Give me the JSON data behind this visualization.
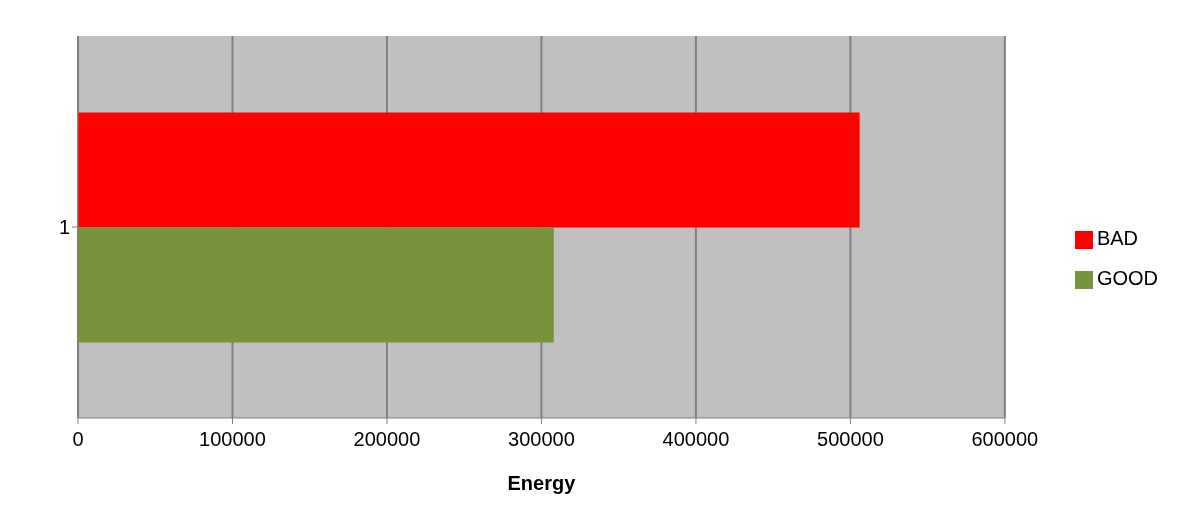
{
  "chart_data": {
    "type": "bar",
    "orientation": "horizontal",
    "xlabel": "Energy",
    "categories": [
      "1"
    ],
    "series": [
      {
        "name": "BAD",
        "color": "#ff0000",
        "values": [
          506000
        ]
      },
      {
        "name": "GOOD",
        "color": "#77933c",
        "values": [
          308000
        ]
      }
    ],
    "xlim": [
      0,
      600000
    ],
    "xticks": [
      0,
      100000,
      200000,
      300000,
      400000,
      500000,
      600000
    ],
    "grid": "x",
    "legend": "right"
  }
}
